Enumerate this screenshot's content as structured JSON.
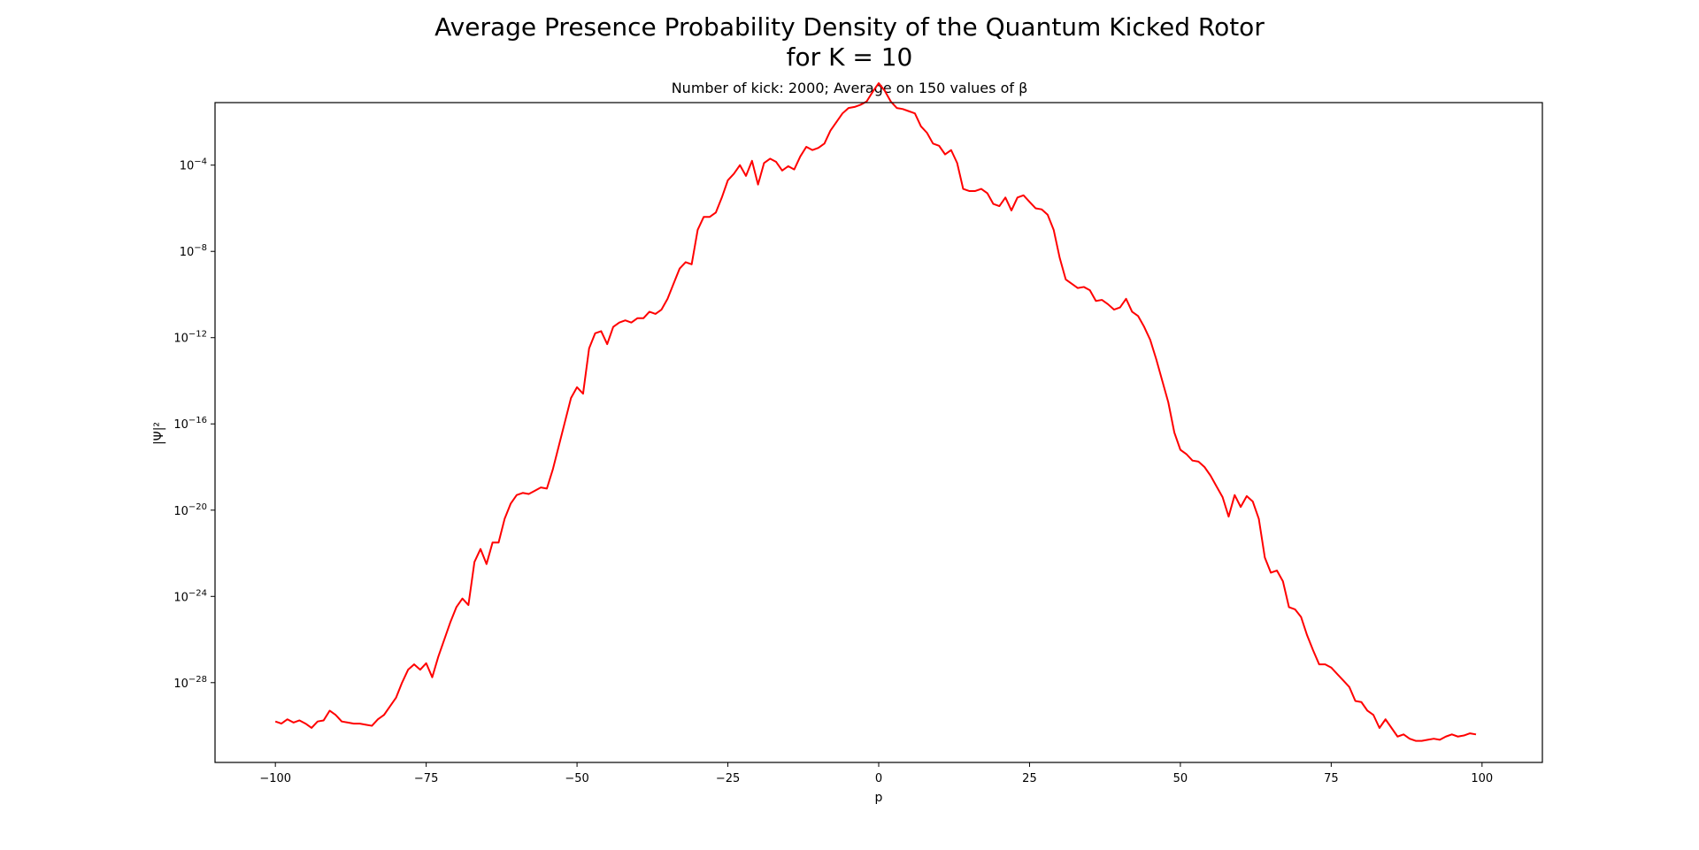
{
  "chart_data": {
    "type": "line",
    "title": "Average Presence Probability Density of the Quantum Kicked Rotor",
    "title_line2": "for K = 10",
    "subtitle": "Number of kick: 2000; Average on 150 values of β",
    "xlabel": "p",
    "ylabel": "|Ψ|²",
    "xscale": "linear",
    "yscale": "log",
    "xlim": [
      -110,
      110
    ],
    "ylim_log10": [
      -31.7,
      -1.1
    ],
    "x_ticks": [
      {
        "value": -100,
        "label": "−100"
      },
      {
        "value": -75,
        "label": "−75"
      },
      {
        "value": -50,
        "label": "−50"
      },
      {
        "value": -25,
        "label": "−25"
      },
      {
        "value": 0,
        "label": "0"
      },
      {
        "value": 25,
        "label": "25"
      },
      {
        "value": 50,
        "label": "50"
      },
      {
        "value": 75,
        "label": "75"
      },
      {
        "value": 100,
        "label": "100"
      }
    ],
    "y_ticks": [
      {
        "exponent": -4,
        "base": "10",
        "sup": "−4"
      },
      {
        "exponent": -8,
        "base": "10",
        "sup": "−8"
      },
      {
        "exponent": -12,
        "base": "10",
        "sup": "−12"
      },
      {
        "exponent": -16,
        "base": "10",
        "sup": "−16"
      },
      {
        "exponent": -20,
        "base": "10",
        "sup": "−20"
      },
      {
        "exponent": -24,
        "base": "10",
        "sup": "−24"
      },
      {
        "exponent": -28,
        "base": "10",
        "sup": "−28"
      }
    ],
    "grid": false,
    "legend": "none",
    "series": [
      {
        "color": "#ff0000",
        "points": [
          [
            -100,
            -29.8
          ],
          [
            -99,
            -29.9
          ],
          [
            -98,
            -29.7
          ],
          [
            -97,
            -29.85
          ],
          [
            -96,
            -29.75
          ],
          [
            -95,
            -29.9
          ],
          [
            -94,
            -30.1
          ],
          [
            -93,
            -29.8
          ],
          [
            -92,
            -29.75
          ],
          [
            -91,
            -29.3
          ],
          [
            -90,
            -29.5
          ],
          [
            -89,
            -29.8
          ],
          [
            -88,
            -29.85
          ],
          [
            -87,
            -29.9
          ],
          [
            -86,
            -29.9
          ],
          [
            -85,
            -29.95
          ],
          [
            -84,
            -30.0
          ],
          [
            -83,
            -29.7
          ],
          [
            -82,
            -29.5
          ],
          [
            -81,
            -29.1
          ],
          [
            -80,
            -28.7
          ],
          [
            -79,
            -28.0
          ],
          [
            -78,
            -27.4
          ],
          [
            -77,
            -27.15
          ],
          [
            -76,
            -27.4
          ],
          [
            -75,
            -27.1
          ],
          [
            -74,
            -27.75
          ],
          [
            -73,
            -26.8
          ],
          [
            -72,
            -26.0
          ],
          [
            -71,
            -25.2
          ],
          [
            -70,
            -24.5
          ],
          [
            -69,
            -24.1
          ],
          [
            -68,
            -24.4
          ],
          [
            -67,
            -22.4
          ],
          [
            -66,
            -21.8
          ],
          [
            -65,
            -22.5
          ],
          [
            -64,
            -21.5
          ],
          [
            -63,
            -21.5
          ],
          [
            -62,
            -20.4
          ],
          [
            -61,
            -19.7
          ],
          [
            -60,
            -19.3
          ],
          [
            -59,
            -19.2
          ],
          [
            -58,
            -19.25
          ],
          [
            -57,
            -19.1
          ],
          [
            -56,
            -18.95
          ],
          [
            -55,
            -19.0
          ],
          [
            -54,
            -18.1
          ],
          [
            -53,
            -17.0
          ],
          [
            -52,
            -15.9
          ],
          [
            -51,
            -14.8
          ],
          [
            -50,
            -14.3
          ],
          [
            -49,
            -14.6
          ],
          [
            -48,
            -12.5
          ],
          [
            -47,
            -11.8
          ],
          [
            -46,
            -11.7
          ],
          [
            -45,
            -12.3
          ],
          [
            -44,
            -11.5
          ],
          [
            -43,
            -11.3
          ],
          [
            -42,
            -11.2
          ],
          [
            -41,
            -11.3
          ],
          [
            -40,
            -11.1
          ],
          [
            -39,
            -11.1
          ],
          [
            -38,
            -10.8
          ],
          [
            -37,
            -10.9
          ],
          [
            -36,
            -10.7
          ],
          [
            -35,
            -10.2
          ],
          [
            -34,
            -9.5
          ],
          [
            -33,
            -8.8
          ],
          [
            -32,
            -8.5
          ],
          [
            -31,
            -8.6
          ],
          [
            -30,
            -7.0
          ],
          [
            -29,
            -6.4
          ],
          [
            -28,
            -6.4
          ],
          [
            -27,
            -6.2
          ],
          [
            -26,
            -5.5
          ],
          [
            -25,
            -4.7
          ],
          [
            -24,
            -4.4
          ],
          [
            -23,
            -4.0
          ],
          [
            -22,
            -4.5
          ],
          [
            -21,
            -3.8
          ],
          [
            -20,
            -4.9
          ],
          [
            -19,
            -3.9
          ],
          [
            -18,
            -3.7
          ],
          [
            -17,
            -3.85
          ],
          [
            -16,
            -4.25
          ],
          [
            -15,
            -4.05
          ],
          [
            -14,
            -4.2
          ],
          [
            -13,
            -3.6
          ],
          [
            -12,
            -3.15
          ],
          [
            -11,
            -3.3
          ],
          [
            -10,
            -3.2
          ],
          [
            -9,
            -3.0
          ],
          [
            -8,
            -2.4
          ],
          [
            -7,
            -2.0
          ],
          [
            -6,
            -1.6
          ],
          [
            -5,
            -1.35
          ],
          [
            -4,
            -1.3
          ],
          [
            -3,
            -1.2
          ],
          [
            -2,
            -1.05
          ],
          [
            -1,
            -0.6
          ],
          [
            0,
            -0.2
          ],
          [
            1,
            -0.55
          ],
          [
            2,
            -1.05
          ],
          [
            3,
            -1.35
          ],
          [
            4,
            -1.4
          ],
          [
            5,
            -1.5
          ],
          [
            6,
            -1.6
          ],
          [
            7,
            -2.2
          ],
          [
            8,
            -2.5
          ],
          [
            9,
            -3.0
          ],
          [
            10,
            -3.1
          ],
          [
            11,
            -3.5
          ],
          [
            12,
            -3.3
          ],
          [
            13,
            -3.9
          ],
          [
            14,
            -5.1
          ],
          [
            15,
            -5.2
          ],
          [
            16,
            -5.2
          ],
          [
            17,
            -5.1
          ],
          [
            18,
            -5.3
          ],
          [
            19,
            -5.8
          ],
          [
            20,
            -5.9
          ],
          [
            21,
            -5.5
          ],
          [
            22,
            -6.1
          ],
          [
            23,
            -5.5
          ],
          [
            24,
            -5.4
          ],
          [
            25,
            -5.7
          ],
          [
            26,
            -6.0
          ],
          [
            27,
            -6.05
          ],
          [
            28,
            -6.3
          ],
          [
            29,
            -7.0
          ],
          [
            30,
            -8.3
          ],
          [
            31,
            -9.3
          ],
          [
            32,
            -9.5
          ],
          [
            33,
            -9.7
          ],
          [
            34,
            -9.65
          ],
          [
            35,
            -9.8
          ],
          [
            36,
            -10.3
          ],
          [
            37,
            -10.25
          ],
          [
            38,
            -10.45
          ],
          [
            39,
            -10.7
          ],
          [
            40,
            -10.6
          ],
          [
            41,
            -10.2
          ],
          [
            42,
            -10.8
          ],
          [
            43,
            -11.0
          ],
          [
            44,
            -11.5
          ],
          [
            45,
            -12.1
          ],
          [
            46,
            -13.0
          ],
          [
            47,
            -14.0
          ],
          [
            48,
            -15.0
          ],
          [
            49,
            -16.4
          ],
          [
            50,
            -17.2
          ],
          [
            51,
            -17.4
          ],
          [
            52,
            -17.7
          ],
          [
            53,
            -17.75
          ],
          [
            54,
            -18.0
          ],
          [
            55,
            -18.4
          ],
          [
            56,
            -18.9
          ],
          [
            57,
            -19.4
          ],
          [
            58,
            -20.3
          ],
          [
            59,
            -19.3
          ],
          [
            60,
            -19.85
          ],
          [
            61,
            -19.35
          ],
          [
            62,
            -19.6
          ],
          [
            63,
            -20.4
          ],
          [
            64,
            -22.2
          ],
          [
            65,
            -22.9
          ],
          [
            66,
            -22.8
          ],
          [
            67,
            -23.3
          ],
          [
            68,
            -24.5
          ],
          [
            69,
            -24.6
          ],
          [
            70,
            -24.95
          ],
          [
            71,
            -25.8
          ],
          [
            72,
            -26.5
          ],
          [
            73,
            -27.15
          ],
          [
            74,
            -27.15
          ],
          [
            75,
            -27.3
          ],
          [
            76,
            -27.6
          ],
          [
            77,
            -27.9
          ],
          [
            78,
            -28.2
          ],
          [
            79,
            -28.85
          ],
          [
            80,
            -28.9
          ],
          [
            81,
            -29.3
          ],
          [
            82,
            -29.5
          ],
          [
            83,
            -30.1
          ],
          [
            84,
            -29.7
          ],
          [
            85,
            -30.1
          ],
          [
            86,
            -30.5
          ],
          [
            87,
            -30.4
          ],
          [
            88,
            -30.6
          ],
          [
            89,
            -30.7
          ],
          [
            90,
            -30.7
          ],
          [
            91,
            -30.65
          ],
          [
            92,
            -30.6
          ],
          [
            93,
            -30.65
          ],
          [
            94,
            -30.5
          ],
          [
            95,
            -30.4
          ],
          [
            96,
            -30.5
          ],
          [
            97,
            -30.45
          ],
          [
            98,
            -30.35
          ],
          [
            99,
            -30.4
          ]
        ]
      }
    ]
  }
}
